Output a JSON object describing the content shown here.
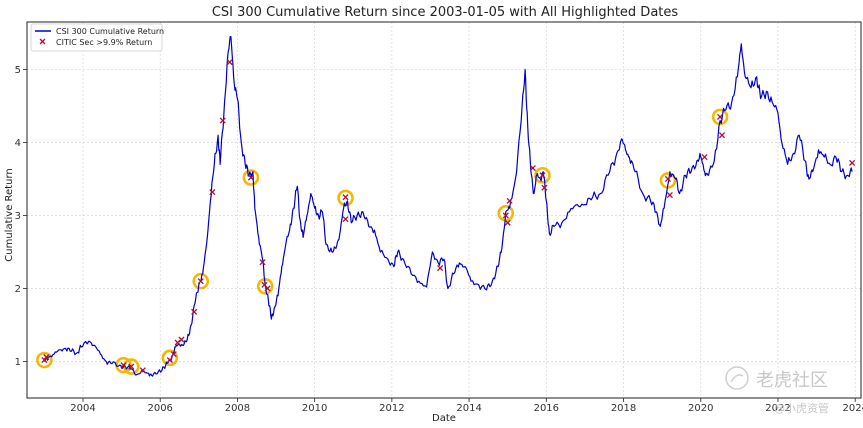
{
  "chart_data": {
    "type": "line",
    "title": "CSI 300 Cumulative Return since 2003-01-05 with All Highlighted Dates",
    "xlabel": "Date",
    "ylabel": "Cumulative Return",
    "xlim": [
      2002.55,
      2024.15
    ],
    "ylim": [
      0.5,
      5.65
    ],
    "x_ticks": [
      {
        "value": 2004,
        "label": "2004"
      },
      {
        "value": 2006,
        "label": "2006"
      },
      {
        "value": 2008,
        "label": "2008"
      },
      {
        "value": 2010,
        "label": "2010"
      },
      {
        "value": 2012,
        "label": "2012"
      },
      {
        "value": 2014,
        "label": "2014"
      },
      {
        "value": 2016,
        "label": "2016"
      },
      {
        "value": 2018,
        "label": "2018"
      },
      {
        "value": 2020,
        "label": "2020"
      },
      {
        "value": 2022,
        "label": "2022"
      },
      {
        "value": 2024,
        "label": "2024"
      }
    ],
    "y_ticks": [
      {
        "value": 1,
        "label": "1"
      },
      {
        "value": 2,
        "label": "2"
      },
      {
        "value": 3,
        "label": "3"
      },
      {
        "value": 4,
        "label": "4"
      },
      {
        "value": 5,
        "label": "5"
      }
    ],
    "grid": true,
    "legend_position": "top-left",
    "series": [
      {
        "name": "CSI 300 Cumulative Return",
        "color": "#0000cc",
        "style": "line",
        "points": [
          [
            2003.0,
            1.0
          ],
          [
            2003.1,
            1.06
          ],
          [
            2003.25,
            1.1
          ],
          [
            2003.4,
            1.16
          ],
          [
            2003.55,
            1.18
          ],
          [
            2003.7,
            1.14
          ],
          [
            2003.85,
            1.12
          ],
          [
            2003.95,
            1.2
          ],
          [
            2004.15,
            1.28
          ],
          [
            2004.3,
            1.22
          ],
          [
            2004.45,
            1.1
          ],
          [
            2004.6,
            1.0
          ],
          [
            2004.75,
            0.97
          ],
          [
            2004.95,
            0.95
          ],
          [
            2005.1,
            0.92
          ],
          [
            2005.25,
            0.9
          ],
          [
            2005.4,
            0.82
          ],
          [
            2005.55,
            0.86
          ],
          [
            2005.7,
            0.84
          ],
          [
            2005.8,
            0.8
          ],
          [
            2005.95,
            0.86
          ],
          [
            2006.1,
            0.92
          ],
          [
            2006.2,
            0.98
          ],
          [
            2006.3,
            1.06
          ],
          [
            2006.4,
            1.2
          ],
          [
            2006.5,
            1.24
          ],
          [
            2006.6,
            1.22
          ],
          [
            2006.7,
            1.3
          ],
          [
            2006.8,
            1.5
          ],
          [
            2006.9,
            1.8
          ],
          [
            2007.0,
            2.05
          ],
          [
            2007.1,
            2.2
          ],
          [
            2007.2,
            2.6
          ],
          [
            2007.3,
            3.2
          ],
          [
            2007.4,
            3.7
          ],
          [
            2007.5,
            4.1
          ],
          [
            2007.55,
            3.7
          ],
          [
            2007.65,
            4.4
          ],
          [
            2007.75,
            5.2
          ],
          [
            2007.83,
            5.45
          ],
          [
            2007.92,
            4.8
          ],
          [
            2008.0,
            4.6
          ],
          [
            2008.1,
            4.0
          ],
          [
            2008.2,
            3.7
          ],
          [
            2008.3,
            3.55
          ],
          [
            2008.4,
            3.6
          ],
          [
            2008.45,
            3.1
          ],
          [
            2008.55,
            2.7
          ],
          [
            2008.65,
            2.4
          ],
          [
            2008.72,
            2.05
          ],
          [
            2008.8,
            1.85
          ],
          [
            2008.88,
            1.58
          ],
          [
            2008.95,
            1.72
          ],
          [
            2009.05,
            1.9
          ],
          [
            2009.15,
            2.3
          ],
          [
            2009.25,
            2.6
          ],
          [
            2009.35,
            2.8
          ],
          [
            2009.45,
            3.1
          ],
          [
            2009.55,
            3.4
          ],
          [
            2009.62,
            2.95
          ],
          [
            2009.7,
            2.7
          ],
          [
            2009.8,
            3.0
          ],
          [
            2009.9,
            3.3
          ],
          [
            2010.0,
            3.1
          ],
          [
            2010.1,
            3.0
          ],
          [
            2010.2,
            3.05
          ],
          [
            2010.3,
            2.6
          ],
          [
            2010.45,
            2.5
          ],
          [
            2010.55,
            2.55
          ],
          [
            2010.65,
            2.75
          ],
          [
            2010.75,
            3.1
          ],
          [
            2010.85,
            3.2
          ],
          [
            2010.95,
            2.9
          ],
          [
            2011.1,
            3.0
          ],
          [
            2011.25,
            3.05
          ],
          [
            2011.4,
            2.85
          ],
          [
            2011.55,
            2.8
          ],
          [
            2011.7,
            2.5
          ],
          [
            2011.9,
            2.4
          ],
          [
            2012.05,
            2.3
          ],
          [
            2012.15,
            2.5
          ],
          [
            2012.3,
            2.4
          ],
          [
            2012.5,
            2.2
          ],
          [
            2012.7,
            2.1
          ],
          [
            2012.9,
            2.02
          ],
          [
            2013.05,
            2.5
          ],
          [
            2013.2,
            2.35
          ],
          [
            2013.35,
            2.4
          ],
          [
            2013.45,
            2.0
          ],
          [
            2013.6,
            2.2
          ],
          [
            2013.75,
            2.35
          ],
          [
            2013.9,
            2.3
          ],
          [
            2014.05,
            2.1
          ],
          [
            2014.25,
            2.05
          ],
          [
            2014.45,
            1.98
          ],
          [
            2014.6,
            2.1
          ],
          [
            2014.75,
            2.3
          ],
          [
            2014.85,
            2.55
          ],
          [
            2014.95,
            3.05
          ],
          [
            2015.05,
            3.1
          ],
          [
            2015.2,
            3.5
          ],
          [
            2015.35,
            4.3
          ],
          [
            2015.45,
            5.0
          ],
          [
            2015.52,
            4.2
          ],
          [
            2015.6,
            3.6
          ],
          [
            2015.68,
            3.3
          ],
          [
            2015.75,
            3.55
          ],
          [
            2015.85,
            3.5
          ],
          [
            2015.92,
            3.6
          ],
          [
            2016.0,
            3.2
          ],
          [
            2016.08,
            2.75
          ],
          [
            2016.2,
            2.85
          ],
          [
            2016.4,
            2.9
          ],
          [
            2016.6,
            3.05
          ],
          [
            2016.8,
            3.15
          ],
          [
            2017.0,
            3.15
          ],
          [
            2017.2,
            3.25
          ],
          [
            2017.4,
            3.3
          ],
          [
            2017.6,
            3.55
          ],
          [
            2017.8,
            3.8
          ],
          [
            2017.95,
            4.05
          ],
          [
            2018.05,
            3.9
          ],
          [
            2018.15,
            3.8
          ],
          [
            2018.3,
            3.6
          ],
          [
            2018.5,
            3.3
          ],
          [
            2018.7,
            3.2
          ],
          [
            2018.85,
            3.05
          ],
          [
            2018.95,
            2.85
          ],
          [
            2019.05,
            3.1
          ],
          [
            2019.2,
            3.6
          ],
          [
            2019.35,
            3.5
          ],
          [
            2019.45,
            3.3
          ],
          [
            2019.6,
            3.55
          ],
          [
            2019.75,
            3.6
          ],
          [
            2019.9,
            3.75
          ],
          [
            2020.0,
            3.8
          ],
          [
            2020.1,
            3.6
          ],
          [
            2020.2,
            3.55
          ],
          [
            2020.35,
            3.75
          ],
          [
            2020.5,
            4.3
          ],
          [
            2020.65,
            4.45
          ],
          [
            2020.8,
            4.55
          ],
          [
            2020.95,
            4.9
          ],
          [
            2021.05,
            5.35
          ],
          [
            2021.15,
            4.9
          ],
          [
            2021.3,
            4.75
          ],
          [
            2021.45,
            4.9
          ],
          [
            2021.55,
            4.6
          ],
          [
            2021.7,
            4.7
          ],
          [
            2021.85,
            4.55
          ],
          [
            2022.0,
            4.4
          ],
          [
            2022.1,
            4.0
          ],
          [
            2022.25,
            3.7
          ],
          [
            2022.4,
            3.85
          ],
          [
            2022.55,
            4.1
          ],
          [
            2022.7,
            3.75
          ],
          [
            2022.8,
            3.5
          ],
          [
            2022.9,
            3.6
          ],
          [
            2023.05,
            3.9
          ],
          [
            2023.2,
            3.8
          ],
          [
            2023.35,
            3.7
          ],
          [
            2023.5,
            3.8
          ],
          [
            2023.65,
            3.6
          ],
          [
            2023.8,
            3.55
          ],
          [
            2023.92,
            3.6
          ]
        ]
      },
      {
        "name": "CITIC Sec >9.9% Return",
        "color": "#aa1133",
        "style": "marker-x",
        "points": [
          [
            2003.0,
            1.02
          ],
          [
            2003.05,
            1.06
          ],
          [
            2005.05,
            0.95
          ],
          [
            2005.25,
            0.93
          ],
          [
            2005.55,
            0.88
          ],
          [
            2006.25,
            1.02
          ],
          [
            2006.35,
            1.1
          ],
          [
            2006.45,
            1.26
          ],
          [
            2006.55,
            1.3
          ],
          [
            2006.88,
            1.68
          ],
          [
            2007.05,
            2.1
          ],
          [
            2007.35,
            3.32
          ],
          [
            2007.62,
            4.3
          ],
          [
            2007.8,
            5.1
          ],
          [
            2008.35,
            3.52
          ],
          [
            2008.65,
            2.36
          ],
          [
            2008.7,
            2.05
          ],
          [
            2008.78,
            2.0
          ],
          [
            2010.8,
            3.25
          ],
          [
            2010.8,
            2.95
          ],
          [
            2013.25,
            2.28
          ],
          [
            2014.95,
            3.0
          ],
          [
            2015.0,
            2.9
          ],
          [
            2015.05,
            3.2
          ],
          [
            2015.65,
            3.65
          ],
          [
            2015.9,
            3.55
          ],
          [
            2015.95,
            3.38
          ],
          [
            2019.15,
            3.5
          ],
          [
            2019.2,
            3.28
          ],
          [
            2020.1,
            3.8
          ],
          [
            2020.5,
            4.35
          ],
          [
            2020.55,
            4.1
          ],
          [
            2023.92,
            3.72
          ]
        ]
      }
    ],
    "highlights": {
      "color": "#f5b800",
      "points": [
        [
          2003.0,
          1.02
        ],
        [
          2005.05,
          0.95
        ],
        [
          2005.25,
          0.93
        ],
        [
          2006.25,
          1.05
        ],
        [
          2007.05,
          2.1
        ],
        [
          2008.35,
          3.52
        ],
        [
          2008.72,
          2.03
        ],
        [
          2010.8,
          3.24
        ],
        [
          2014.95,
          3.03
        ],
        [
          2015.9,
          3.55
        ],
        [
          2019.15,
          3.48
        ],
        [
          2020.5,
          4.35
        ]
      ]
    }
  },
  "watermark": {
    "brand": "老虎社区",
    "handle": "@小虎资管"
  }
}
